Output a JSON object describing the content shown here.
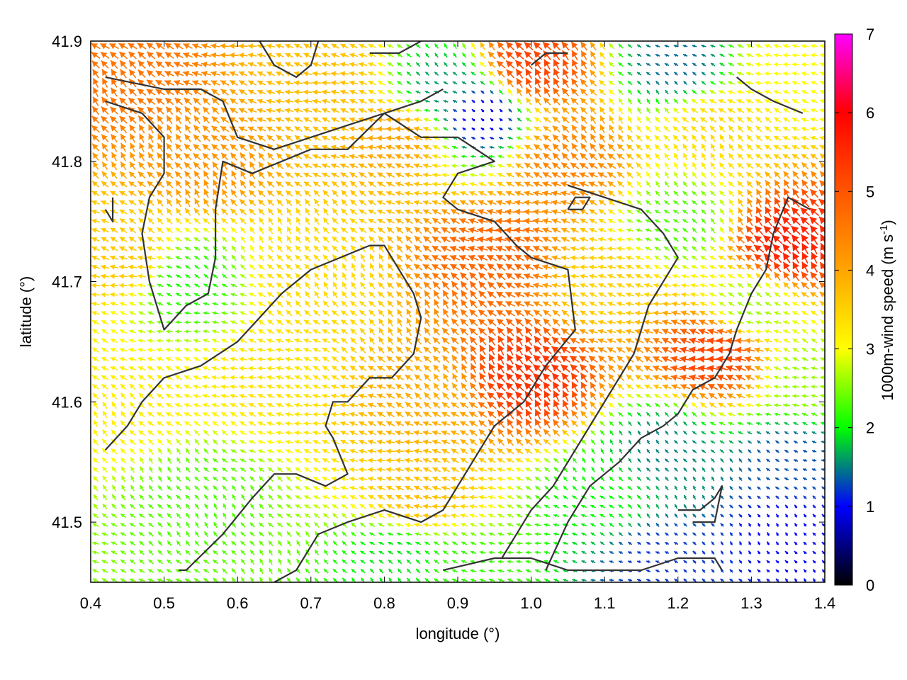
{
  "chart_data": {
    "type": "vector-field",
    "title": "",
    "xlabel": "longitude (°)",
    "ylabel": "latitude (°)",
    "xlim": [
      0.4,
      1.4
    ],
    "ylim": [
      41.45,
      41.9
    ],
    "xticks": [
      0.4,
      0.5,
      0.6,
      0.7,
      0.8,
      0.9,
      1.0,
      1.1,
      1.2,
      1.3,
      1.4
    ],
    "xtick_labels": [
      "0.4",
      "0.5",
      "0.6",
      "0.7",
      "0.8",
      "0.9",
      "1.0",
      "1.1",
      "1.2",
      "1.3",
      "1.4"
    ],
    "yticks": [
      41.5,
      41.6,
      41.7,
      41.8,
      41.9
    ],
    "ytick_labels": [
      "41.5",
      "41.6",
      "41.7",
      "41.8",
      "41.9"
    ],
    "colorbar": {
      "label_main": "1000m-wind speed (m s",
      "label_sup": "-1",
      "label_end": ")",
      "range": [
        0,
        7
      ],
      "ticks": [
        0,
        1,
        2,
        3,
        4,
        5,
        6,
        7
      ],
      "tick_labels": [
        "0",
        "1",
        "2",
        "3",
        "4",
        "5",
        "6",
        "7"
      ],
      "colormap": [
        {
          "value": 0,
          "color": "#000000"
        },
        {
          "value": 1,
          "color": "#0000ff"
        },
        {
          "value": 2,
          "color": "#00ff00"
        },
        {
          "value": 3,
          "color": "#ffff00"
        },
        {
          "value": 4,
          "color": "#ffa500"
        },
        {
          "value": 5,
          "color": "#ff5500"
        },
        {
          "value": 6,
          "color": "#ff0000"
        },
        {
          "value": 7,
          "color": "#ff00ff"
        }
      ]
    },
    "wind_field": {
      "description_of_encoding": "arrows colored by wind speed; dominant flow toward the north-west",
      "mean_direction": "north-west",
      "speed_regions": [
        {
          "lon": 0.45,
          "lat": 41.87,
          "speed": 4.6
        },
        {
          "lon": 0.55,
          "lat": 41.8,
          "speed": 4.2
        },
        {
          "lon": 0.45,
          "lat": 41.72,
          "speed": 3.6
        },
        {
          "lon": 0.53,
          "lat": 41.7,
          "speed": 2.1
        },
        {
          "lon": 0.45,
          "lat": 41.6,
          "speed": 3.2
        },
        {
          "lon": 0.55,
          "lat": 41.52,
          "speed": 2.3
        },
        {
          "lon": 0.65,
          "lat": 41.62,
          "speed": 3.3
        },
        {
          "lon": 0.7,
          "lat": 41.7,
          "speed": 3.4
        },
        {
          "lon": 0.72,
          "lat": 41.87,
          "speed": 3.7
        },
        {
          "lon": 0.82,
          "lat": 41.82,
          "speed": 4.0
        },
        {
          "lon": 0.88,
          "lat": 41.86,
          "speed": 1.6
        },
        {
          "lon": 0.93,
          "lat": 41.84,
          "speed": 0.9
        },
        {
          "lon": 1.0,
          "lat": 41.88,
          "speed": 5.2
        },
        {
          "lon": 0.95,
          "lat": 41.72,
          "speed": 4.8
        },
        {
          "lon": 1.0,
          "lat": 41.62,
          "speed": 5.4
        },
        {
          "lon": 0.85,
          "lat": 41.6,
          "speed": 3.9
        },
        {
          "lon": 0.85,
          "lat": 41.52,
          "speed": 3.7
        },
        {
          "lon": 0.82,
          "lat": 41.47,
          "speed": 1.9
        },
        {
          "lon": 0.9,
          "lat": 41.46,
          "speed": 2.2
        },
        {
          "lon": 1.05,
          "lat": 41.8,
          "speed": 4.4
        },
        {
          "lon": 1.1,
          "lat": 41.7,
          "speed": 3.5
        },
        {
          "lon": 1.1,
          "lat": 41.52,
          "speed": 2.0
        },
        {
          "lon": 1.18,
          "lat": 41.56,
          "speed": 1.5
        },
        {
          "lon": 1.17,
          "lat": 41.47,
          "speed": 1.2
        },
        {
          "lon": 1.2,
          "lat": 41.75,
          "speed": 2.3
        },
        {
          "lon": 1.2,
          "lat": 41.88,
          "speed": 1.4
        },
        {
          "lon": 1.25,
          "lat": 41.83,
          "speed": 3.4
        },
        {
          "lon": 1.25,
          "lat": 41.64,
          "speed": 5.2
        },
        {
          "lon": 1.3,
          "lat": 41.68,
          "speed": 2.6
        },
        {
          "lon": 1.35,
          "lat": 41.73,
          "speed": 5.6
        },
        {
          "lon": 1.35,
          "lat": 41.55,
          "speed": 1.3
        },
        {
          "lon": 1.35,
          "lat": 41.49,
          "speed": 1.0
        },
        {
          "lon": 1.35,
          "lat": 41.88,
          "speed": 3.0
        },
        {
          "lon": 1.38,
          "lat": 41.62,
          "speed": 2.6
        }
      ]
    },
    "contours": [
      [
        [
          0.42,
          41.87
        ],
        [
          0.5,
          41.86
        ],
        [
          0.55,
          41.86
        ],
        [
          0.58,
          41.85
        ],
        [
          0.6,
          41.82
        ],
        [
          0.65,
          41.81
        ],
        [
          0.7,
          41.82
        ],
        [
          0.75,
          41.83
        ],
        [
          0.8,
          41.84
        ],
        [
          0.85,
          41.85
        ],
        [
          0.88,
          41.86
        ]
      ],
      [
        [
          0.42,
          41.85
        ],
        [
          0.47,
          41.84
        ],
        [
          0.5,
          41.82
        ],
        [
          0.5,
          41.79
        ],
        [
          0.48,
          41.77
        ],
        [
          0.47,
          41.74
        ],
        [
          0.48,
          41.7
        ],
        [
          0.5,
          41.66
        ],
        [
          0.53,
          41.68
        ],
        [
          0.56,
          41.69
        ],
        [
          0.57,
          41.72
        ],
        [
          0.57,
          41.76
        ],
        [
          0.58,
          41.8
        ],
        [
          0.62,
          41.79
        ],
        [
          0.7,
          41.81
        ],
        [
          0.75,
          41.81
        ],
        [
          0.8,
          41.84
        ],
        [
          0.85,
          41.82
        ],
        [
          0.9,
          41.82
        ],
        [
          0.95,
          41.8
        ],
        [
          0.9,
          41.79
        ],
        [
          0.88,
          41.77
        ],
        [
          0.9,
          41.76
        ],
        [
          0.95,
          41.75
        ],
        [
          0.98,
          41.73
        ],
        [
          1.0,
          41.72
        ],
        [
          1.05,
          41.71
        ],
        [
          1.06,
          41.66
        ],
        [
          1.02,
          41.63
        ],
        [
          0.99,
          41.6
        ],
        [
          0.95,
          41.58
        ],
        [
          0.93,
          41.56
        ],
        [
          0.9,
          41.53
        ],
        [
          0.88,
          41.51
        ],
        [
          0.85,
          41.5
        ],
        [
          0.8,
          41.51
        ],
        [
          0.75,
          41.5
        ],
        [
          0.71,
          41.49
        ],
        [
          0.68,
          41.46
        ],
        [
          0.65,
          41.45
        ]
      ],
      [
        [
          0.42,
          41.56
        ],
        [
          0.45,
          41.58
        ],
        [
          0.47,
          41.6
        ],
        [
          0.5,
          41.62
        ],
        [
          0.55,
          41.63
        ],
        [
          0.6,
          41.65
        ],
        [
          0.63,
          41.67
        ],
        [
          0.66,
          41.69
        ],
        [
          0.7,
          41.71
        ],
        [
          0.74,
          41.72
        ],
        [
          0.78,
          41.73
        ],
        [
          0.8,
          41.73
        ],
        [
          0.82,
          41.71
        ],
        [
          0.84,
          41.69
        ],
        [
          0.85,
          41.67
        ],
        [
          0.84,
          41.64
        ],
        [
          0.81,
          41.62
        ],
        [
          0.78,
          41.62
        ],
        [
          0.75,
          41.6
        ],
        [
          0.73,
          41.6
        ],
        [
          0.72,
          41.58
        ],
        [
          0.73,
          41.57
        ],
        [
          0.75,
          41.54
        ],
        [
          0.72,
          41.53
        ],
        [
          0.68,
          41.54
        ],
        [
          0.65,
          41.54
        ],
        [
          0.62,
          41.52
        ],
        [
          0.58,
          41.49
        ],
        [
          0.53,
          41.46
        ],
        [
          0.52,
          41.46
        ]
      ],
      [
        [
          1.02,
          41.46
        ],
        [
          1.05,
          41.5
        ],
        [
          1.08,
          41.53
        ],
        [
          1.12,
          41.55
        ],
        [
          1.15,
          41.57
        ],
        [
          1.18,
          41.58
        ],
        [
          1.2,
          41.59
        ],
        [
          1.22,
          41.61
        ],
        [
          1.25,
          41.62
        ],
        [
          1.27,
          41.64
        ],
        [
          1.28,
          41.66
        ],
        [
          1.3,
          41.69
        ],
        [
          1.32,
          41.71
        ],
        [
          1.33,
          41.74
        ],
        [
          1.35,
          41.77
        ],
        [
          1.38,
          41.76
        ]
      ],
      [
        [
          1.05,
          41.78
        ],
        [
          1.1,
          41.77
        ],
        [
          1.15,
          41.76
        ],
        [
          1.18,
          41.74
        ],
        [
          1.2,
          41.72
        ],
        [
          1.18,
          41.7
        ],
        [
          1.16,
          41.68
        ],
        [
          1.14,
          41.64
        ],
        [
          1.12,
          41.62
        ],
        [
          1.1,
          41.6
        ],
        [
          1.08,
          41.58
        ],
        [
          1.06,
          41.56
        ],
        [
          1.03,
          41.53
        ],
        [
          1.0,
          41.51
        ],
        [
          0.98,
          41.49
        ],
        [
          0.96,
          41.47
        ]
      ],
      [
        [
          1.2,
          41.51
        ],
        [
          1.23,
          41.51
        ],
        [
          1.25,
          41.52
        ],
        [
          1.26,
          41.53
        ],
        [
          1.25,
          41.5
        ],
        [
          1.22,
          41.5
        ]
      ],
      [
        [
          1.28,
          41.87
        ],
        [
          1.3,
          41.86
        ],
        [
          1.33,
          41.85
        ],
        [
          1.37,
          41.84
        ]
      ],
      [
        [
          0.63,
          41.9
        ],
        [
          0.65,
          41.88
        ],
        [
          0.68,
          41.87
        ],
        [
          0.7,
          41.88
        ],
        [
          0.71,
          41.9
        ]
      ],
      [
        [
          1.05,
          41.76
        ],
        [
          1.07,
          41.76
        ],
        [
          1.08,
          41.77
        ],
        [
          1.06,
          41.77
        ],
        [
          1.05,
          41.76
        ]
      ],
      [
        [
          0.88,
          41.46
        ],
        [
          0.95,
          41.47
        ],
        [
          1.0,
          41.47
        ],
        [
          1.05,
          41.46
        ],
        [
          1.1,
          41.46
        ],
        [
          1.15,
          41.46
        ],
        [
          1.2,
          41.47
        ],
        [
          1.25,
          41.47
        ],
        [
          1.26,
          41.46
        ]
      ],
      [
        [
          0.42,
          41.76
        ],
        [
          0.43,
          41.75
        ],
        [
          0.43,
          41.77
        ]
      ],
      [
        [
          0.78,
          41.89
        ],
        [
          0.82,
          41.89
        ],
        [
          0.85,
          41.9
        ]
      ],
      [
        [
          1.0,
          41.88
        ],
        [
          1.02,
          41.89
        ],
        [
          1.05,
          41.89
        ]
      ]
    ]
  }
}
